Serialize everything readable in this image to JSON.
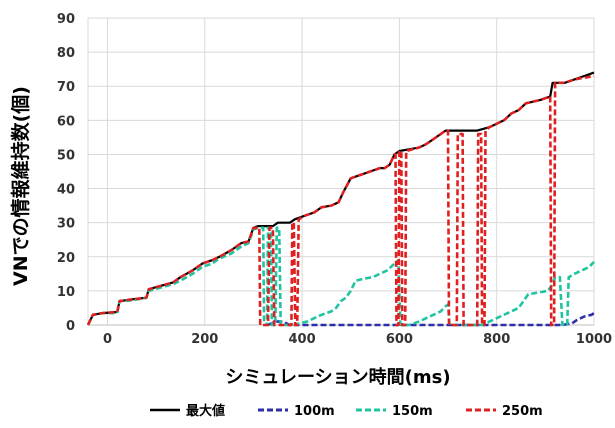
{
  "chart_data": {
    "type": "line",
    "title": "",
    "xlabel": "シミュレーション時間(ms)",
    "ylabel": "VNでの情報維持数(個)",
    "xlim": [
      -40,
      1000
    ],
    "ylim": [
      0,
      90
    ],
    "x_ticks": [
      "0",
      "200",
      "400",
      "600",
      "800",
      "1000"
    ],
    "y_ticks": [
      "0",
      "10",
      "20",
      "30",
      "40",
      "50",
      "60",
      "70",
      "80",
      "90"
    ],
    "grid": true,
    "legend_position": "bottom",
    "series": [
      {
        "name": "最大値",
        "color": "#000000",
        "style": "solid",
        "points": [
          [
            -40,
            0
          ],
          [
            -30,
            3
          ],
          [
            -10,
            3.5
          ],
          [
            20,
            3.8
          ],
          [
            25,
            7
          ],
          [
            50,
            7.5
          ],
          [
            80,
            8
          ],
          [
            85,
            10.5
          ],
          [
            110,
            11.5
          ],
          [
            135,
            12.5
          ],
          [
            150,
            14
          ],
          [
            175,
            16
          ],
          [
            195,
            18
          ],
          [
            215,
            19
          ],
          [
            230,
            20
          ],
          [
            255,
            22
          ],
          [
            275,
            24
          ],
          [
            290,
            24.5
          ],
          [
            300,
            28.5
          ],
          [
            310,
            29
          ],
          [
            340,
            29
          ],
          [
            350,
            30
          ],
          [
            375,
            30
          ],
          [
            385,
            31
          ],
          [
            405,
            32
          ],
          [
            425,
            33
          ],
          [
            440,
            34.5
          ],
          [
            460,
            35
          ],
          [
            475,
            36
          ],
          [
            485,
            39
          ],
          [
            500,
            43
          ],
          [
            520,
            44
          ],
          [
            540,
            45
          ],
          [
            560,
            46
          ],
          [
            570,
            46
          ],
          [
            580,
            47
          ],
          [
            590,
            50
          ],
          [
            600,
            51
          ],
          [
            620,
            51.5
          ],
          [
            640,
            52
          ],
          [
            655,
            53
          ],
          [
            675,
            55
          ],
          [
            695,
            57
          ],
          [
            760,
            57
          ],
          [
            785,
            58
          ],
          [
            800,
            59
          ],
          [
            815,
            60
          ],
          [
            830,
            62
          ],
          [
            845,
            63
          ],
          [
            860,
            65
          ],
          [
            890,
            66
          ],
          [
            910,
            67
          ],
          [
            915,
            71
          ],
          [
            940,
            71
          ],
          [
            960,
            72
          ],
          [
            980,
            73
          ],
          [
            1000,
            74
          ]
        ]
      },
      {
        "name": "100m",
        "color": "#2e2ea8",
        "style": "dashed",
        "points": [
          [
            330,
            0
          ],
          [
            345,
            1
          ],
          [
            360,
            1
          ],
          [
            375,
            0
          ],
          [
            385,
            0
          ],
          [
            935,
            0
          ],
          [
            955,
            0.5
          ],
          [
            965,
            1.5
          ],
          [
            980,
            2.5
          ],
          [
            995,
            3
          ],
          [
            1000,
            3.5
          ]
        ]
      },
      {
        "name": "150m",
        "color": "#1fc4a0",
        "style": "dashed",
        "points": [
          [
            -40,
            0
          ],
          [
            -30,
            3
          ],
          [
            -10,
            3.5
          ],
          [
            20,
            3.5
          ],
          [
            25,
            7
          ],
          [
            50,
            7.2
          ],
          [
            80,
            8
          ],
          [
            85,
            10
          ],
          [
            110,
            11
          ],
          [
            135,
            12
          ],
          [
            150,
            13
          ],
          [
            175,
            15
          ],
          [
            195,
            17
          ],
          [
            215,
            18
          ],
          [
            230,
            19.5
          ],
          [
            255,
            21
          ],
          [
            275,
            23
          ],
          [
            290,
            24
          ],
          [
            300,
            28
          ],
          [
            310,
            28.5
          ],
          [
            320,
            28.5
          ],
          [
            322,
            0
          ],
          [
            328,
            0
          ],
          [
            330,
            28.5
          ],
          [
            336,
            28.5
          ],
          [
            338,
            0
          ],
          [
            345,
            0
          ],
          [
            348,
            28.5
          ],
          [
            353,
            28.5
          ],
          [
            356,
            0
          ],
          [
            385,
            0
          ],
          [
            395,
            0.5
          ],
          [
            410,
            1
          ],
          [
            425,
            2
          ],
          [
            440,
            3
          ],
          [
            460,
            4
          ],
          [
            470,
            5
          ],
          [
            480,
            7
          ],
          [
            490,
            8
          ],
          [
            500,
            10
          ],
          [
            510,
            13
          ],
          [
            525,
            13.5
          ],
          [
            545,
            14
          ],
          [
            560,
            15
          ],
          [
            575,
            16
          ],
          [
            590,
            18
          ],
          [
            598,
            19
          ],
          [
            602,
            0
          ],
          [
            620,
            0
          ],
          [
            640,
            1
          ],
          [
            655,
            2
          ],
          [
            670,
            3
          ],
          [
            685,
            4
          ],
          [
            695,
            5.5
          ],
          [
            700,
            6
          ],
          [
            703,
            0
          ],
          [
            770,
            0
          ],
          [
            785,
            1
          ],
          [
            800,
            2
          ],
          [
            815,
            3
          ],
          [
            830,
            4
          ],
          [
            845,
            5
          ],
          [
            855,
            7
          ],
          [
            865,
            9
          ],
          [
            885,
            9.5
          ],
          [
            905,
            10
          ],
          [
            915,
            12
          ],
          [
            920,
            14
          ],
          [
            930,
            14
          ],
          [
            935,
            0
          ],
          [
            945,
            0
          ],
          [
            948,
            14
          ],
          [
            960,
            15
          ],
          [
            975,
            16
          ],
          [
            990,
            17
          ],
          [
            1000,
            18.5
          ]
        ]
      },
      {
        "name": "250m",
        "color": "#e02020",
        "style": "dashed",
        "points": [
          [
            -40,
            0
          ],
          [
            -30,
            3
          ],
          [
            -10,
            3.5
          ],
          [
            20,
            3.8
          ],
          [
            25,
            7
          ],
          [
            50,
            7.5
          ],
          [
            80,
            8
          ],
          [
            85,
            10.5
          ],
          [
            110,
            11.5
          ],
          [
            135,
            12.5
          ],
          [
            150,
            14
          ],
          [
            175,
            16
          ],
          [
            195,
            18
          ],
          [
            215,
            19
          ],
          [
            230,
            20
          ],
          [
            255,
            22
          ],
          [
            275,
            24
          ],
          [
            290,
            24.5
          ],
          [
            300,
            28.5
          ],
          [
            312,
            28.5
          ],
          [
            314,
            0
          ],
          [
            330,
            0
          ],
          [
            333,
            28.5
          ],
          [
            340,
            28.5
          ],
          [
            343,
            0
          ],
          [
            378,
            0
          ],
          [
            380,
            30
          ],
          [
            383,
            30
          ],
          [
            386,
            0
          ],
          [
            390,
            0
          ],
          [
            393,
            31
          ],
          [
            405,
            32
          ],
          [
            425,
            33
          ],
          [
            440,
            34.5
          ],
          [
            460,
            35
          ],
          [
            475,
            36
          ],
          [
            485,
            39
          ],
          [
            500,
            43
          ],
          [
            520,
            44
          ],
          [
            540,
            45
          ],
          [
            560,
            46
          ],
          [
            570,
            46
          ],
          [
            580,
            47
          ],
          [
            590,
            50
          ],
          [
            592,
            50
          ],
          [
            594,
            0
          ],
          [
            598,
            0
          ],
          [
            600,
            51
          ],
          [
            604,
            51
          ],
          [
            606,
            0
          ],
          [
            612,
            0
          ],
          [
            614,
            51
          ],
          [
            640,
            52
          ],
          [
            655,
            53
          ],
          [
            675,
            55
          ],
          [
            695,
            57
          ],
          [
            700,
            57
          ],
          [
            702,
            0
          ],
          [
            718,
            0
          ],
          [
            720,
            56
          ],
          [
            730,
            56
          ],
          [
            732,
            0
          ],
          [
            760,
            0
          ],
          [
            762,
            56
          ],
          [
            768,
            56
          ],
          [
            770,
            0
          ],
          [
            775,
            0
          ],
          [
            777,
            57
          ],
          [
            785,
            58
          ],
          [
            800,
            59
          ],
          [
            815,
            60
          ],
          [
            830,
            62
          ],
          [
            845,
            63
          ],
          [
            860,
            65
          ],
          [
            890,
            66
          ],
          [
            910,
            67
          ],
          [
            912,
            0
          ],
          [
            918,
            0
          ],
          [
            920,
            71
          ],
          [
            940,
            71
          ],
          [
            960,
            72
          ],
          [
            980,
            72.5
          ],
          [
            1000,
            73
          ]
        ]
      }
    ]
  }
}
